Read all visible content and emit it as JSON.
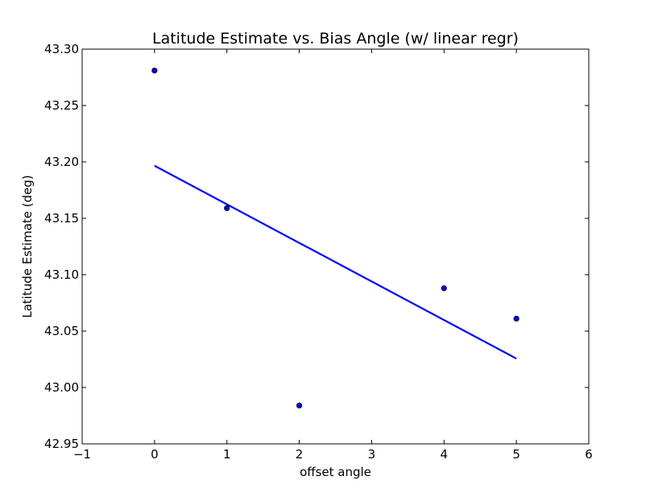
{
  "chart_data": {
    "type": "scatter",
    "title": "Latitude Estimate vs. Bias Angle (w/ linear regr)",
    "xlabel": "offset angle",
    "ylabel": "Latitude Estimate (deg)",
    "xlim": [
      -1,
      6
    ],
    "ylim": [
      42.95,
      43.3
    ],
    "xticks": [
      -1,
      0,
      1,
      2,
      3,
      4,
      5,
      6
    ],
    "xtick_labels": [
      "−1",
      "0",
      "1",
      "2",
      "3",
      "4",
      "5",
      "6"
    ],
    "yticks": [
      42.95,
      43.0,
      43.05,
      43.1,
      43.15,
      43.2,
      43.25,
      43.3
    ],
    "ytick_labels": [
      "42.95",
      "43.00",
      "43.05",
      "43.10",
      "43.15",
      "43.20",
      "43.25",
      "43.30"
    ],
    "grid": false,
    "series": [
      {
        "type": "scatter",
        "x": [
          0,
          1,
          2,
          4,
          5
        ],
        "y": [
          43.281,
          43.159,
          42.984,
          43.088,
          43.061
        ],
        "color": "#0000ff"
      },
      {
        "type": "line",
        "x": [
          0,
          5
        ],
        "y": [
          43.1966,
          43.0256
        ],
        "color": "#0000ff"
      }
    ]
  }
}
